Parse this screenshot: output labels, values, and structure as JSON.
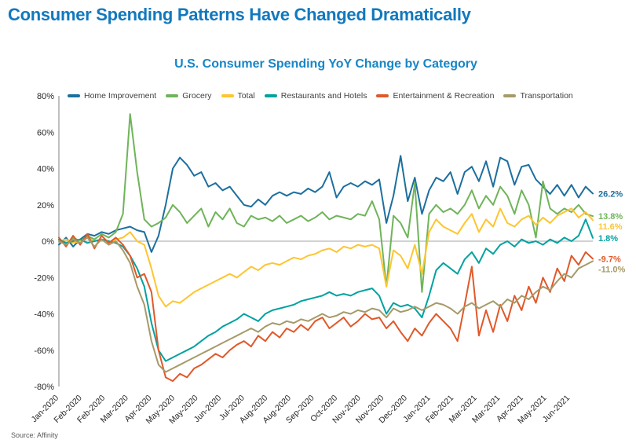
{
  "page": {
    "title": "Consumer Spending Patterns Have Changed Dramatically",
    "source": "Source: Affinity"
  },
  "chart_data": {
    "type": "line",
    "title": "U.S. Consumer Spending YoY Change by Category",
    "ylim": [
      -80,
      80
    ],
    "grid": "zero-line-only",
    "legend_position": "top-inside",
    "y_tick_labels": [
      "80%",
      "60%",
      "40%",
      "20%",
      "0%",
      "-20%",
      "-40%",
      "-60%",
      "-80%"
    ],
    "y_tick_values": [
      80,
      60,
      40,
      20,
      0,
      -20,
      -40,
      -60,
      -80
    ],
    "x_tick_labels": [
      "Jan-2020",
      "Feb-2020",
      "Feb-2020",
      "Mar-2020",
      "Apr-2020",
      "May-2020",
      "May-2020",
      "Jun-2020",
      "Jul-2020",
      "Aug-2020",
      "Aug-2020",
      "Sep-2020",
      "Oct-2020",
      "Nov-2020",
      "Nov-2020",
      "Dec-2020",
      "Jan-2021",
      "Feb-2021",
      "Mar-2021",
      "Mar-2021",
      "Apr-2021",
      "May-2021",
      "Jun-2021"
    ],
    "x_points": 76,
    "x_unit": "weekly, Jan-2020 to Jun-2021",
    "series": [
      {
        "name": "Home Improvement",
        "color": "#1d6f9e",
        "end_label": "26.2%",
        "values": [
          -2,
          2,
          -3,
          1,
          4,
          3,
          5,
          4,
          6,
          7,
          8,
          6,
          5,
          -6,
          3,
          20,
          40,
          46,
          42,
          36,
          38,
          30,
          32,
          28,
          30,
          25,
          20,
          19,
          23,
          20,
          25,
          27,
          25,
          27,
          26,
          29,
          27,
          30,
          38,
          24,
          30,
          32,
          30,
          33,
          31,
          34,
          10,
          25,
          47,
          22,
          35,
          15,
          28,
          35,
          33,
          38,
          26,
          38,
          41,
          33,
          44,
          30,
          46,
          44,
          31,
          41,
          42,
          34,
          30,
          26,
          31,
          25,
          31,
          24,
          30,
          26.2
        ]
      },
      {
        "name": "Grocery",
        "color": "#6fb45a",
        "end_label": "13.8%",
        "values": [
          1,
          -2,
          2,
          0,
          3,
          1,
          4,
          2,
          5,
          15,
          70,
          38,
          12,
          8,
          10,
          13,
          20,
          16,
          10,
          14,
          18,
          8,
          16,
          12,
          18,
          10,
          8,
          14,
          12,
          13,
          11,
          14,
          10,
          12,
          14,
          11,
          13,
          16,
          12,
          14,
          13,
          12,
          15,
          14,
          22,
          12,
          -25,
          14,
          10,
          2,
          32,
          -28,
          15,
          20,
          16,
          18,
          15,
          20,
          28,
          18,
          25,
          20,
          30,
          25,
          15,
          28,
          20,
          2,
          33,
          18,
          15,
          18,
          16,
          20,
          15,
          13.8
        ]
      },
      {
        "name": "Total",
        "color": "#fdc530",
        "end_label": "11.6%",
        "values": [
          0,
          1,
          -1,
          0,
          2,
          0,
          1,
          -1,
          1,
          2,
          5,
          0,
          -2,
          -15,
          -30,
          -36,
          -33,
          -34,
          -31,
          -28,
          -26,
          -24,
          -22,
          -20,
          -18,
          -20,
          -17,
          -14,
          -16,
          -13,
          -12,
          -13,
          -11,
          -9,
          -10,
          -8,
          -7,
          -5,
          -4,
          -6,
          -3,
          -4,
          -2,
          -3,
          -2,
          -4,
          -25,
          -5,
          -8,
          -15,
          -2,
          -18,
          5,
          12,
          8,
          6,
          4,
          10,
          15,
          5,
          12,
          8,
          18,
          10,
          8,
          12,
          14,
          9,
          13,
          10,
          14,
          16,
          18,
          13,
          16,
          11.6
        ]
      },
      {
        "name": "Restaurants and Hotels",
        "color": "#00a2a0",
        "end_label": "1.8%",
        "values": [
          1,
          -1,
          0,
          1,
          -1,
          0,
          1,
          0,
          -1,
          -3,
          -8,
          -15,
          -25,
          -45,
          -60,
          -66,
          -64,
          -62,
          -60,
          -58,
          -55,
          -52,
          -50,
          -47,
          -45,
          -43,
          -40,
          -42,
          -44,
          -40,
          -38,
          -37,
          -36,
          -35,
          -33,
          -32,
          -31,
          -30,
          -28,
          -30,
          -29,
          -30,
          -28,
          -27,
          -26,
          -30,
          -40,
          -34,
          -36,
          -35,
          -37,
          -42,
          -30,
          -16,
          -12,
          -15,
          -18,
          -10,
          -6,
          -12,
          -4,
          -7,
          -2,
          0,
          -3,
          1,
          -1,
          0,
          -2,
          1,
          -1,
          2,
          0,
          3,
          12,
          1.8
        ]
      },
      {
        "name": "Entertainment & Recreation",
        "color": "#e0592a",
        "end_label": "-9.7%",
        "values": [
          2,
          -3,
          3,
          -2,
          4,
          -4,
          3,
          -1,
          2,
          -2,
          -8,
          -20,
          -18,
          -28,
          -60,
          -75,
          -77,
          -73,
          -75,
          -70,
          -68,
          -65,
          -62,
          -64,
          -60,
          -57,
          -55,
          -58,
          -52,
          -55,
          -50,
          -53,
          -48,
          -50,
          -46,
          -49,
          -44,
          -42,
          -48,
          -45,
          -42,
          -47,
          -44,
          -40,
          -43,
          -42,
          -48,
          -44,
          -50,
          -55,
          -48,
          -52,
          -45,
          -40,
          -44,
          -48,
          -55,
          -35,
          -14,
          -52,
          -38,
          -50,
          -35,
          -44,
          -30,
          -38,
          -25,
          -34,
          -20,
          -28,
          -15,
          -22,
          -8,
          -13,
          -6,
          -9.7
        ]
      },
      {
        "name": "Transportation",
        "color": "#a69a69",
        "end_label": "-11.0%",
        "values": [
          0,
          -2,
          1,
          -1,
          2,
          -3,
          1,
          -2,
          0,
          -5,
          -12,
          -25,
          -35,
          -55,
          -68,
          -72,
          -70,
          -68,
          -66,
          -64,
          -62,
          -60,
          -58,
          -56,
          -54,
          -52,
          -50,
          -48,
          -50,
          -47,
          -45,
          -46,
          -44,
          -45,
          -43,
          -44,
          -42,
          -40,
          -42,
          -41,
          -39,
          -40,
          -38,
          -39,
          -37,
          -38,
          -42,
          -37,
          -39,
          -38,
          -36,
          -38,
          -36,
          -34,
          -35,
          -37,
          -40,
          -36,
          -34,
          -37,
          -35,
          -33,
          -36,
          -32,
          -34,
          -30,
          -32,
          -28,
          -25,
          -27,
          -22,
          -18,
          -20,
          -15,
          -13,
          -11.0
        ]
      }
    ],
    "colors": {
      "title_blue": "#1278bd",
      "axis_text": "#262626",
      "zero_line": "#a6a6a6",
      "axis_line": "#7f7f7f"
    }
  }
}
